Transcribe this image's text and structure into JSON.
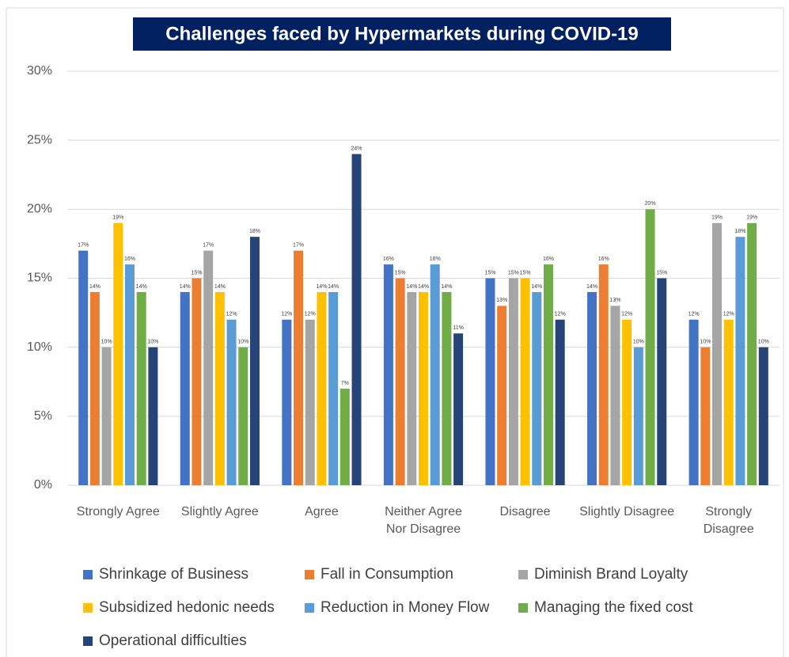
{
  "chart_data": {
    "type": "bar",
    "title": "Challenges faced by Hypermarkets during COVID-19",
    "categories": [
      "Strongly Agree",
      "Slightly Agree",
      "Agree",
      "Neither Agree Nor Disagree",
      "Disagree",
      "Slightly Disagree",
      "Strongly Disagree"
    ],
    "ylim": [
      0,
      30
    ],
    "yticks": [
      {
        "value": 0,
        "label": "0%"
      },
      {
        "value": 5,
        "label": "5%"
      },
      {
        "value": 10,
        "label": "10%"
      },
      {
        "value": 15,
        "label": "15%"
      },
      {
        "value": 20,
        "label": "20%"
      },
      {
        "value": 25,
        "label": "25%"
      },
      {
        "value": 30,
        "label": "30%"
      }
    ],
    "grid": true,
    "series": [
      {
        "name": "Shrinkage of Business",
        "color": "#4472c4",
        "values": [
          17,
          14,
          12,
          16,
          15,
          14,
          12
        ],
        "value_labels": [
          "17%",
          "14%",
          "12%",
          "16%",
          "15%",
          "14%",
          "12%"
        ]
      },
      {
        "name": "Fall in Consumption",
        "color": "#ed7d31",
        "values": [
          14,
          15,
          17,
          15,
          13,
          16,
          10
        ],
        "value_labels": [
          "14%",
          "15%",
          "17%",
          "15%",
          "13%",
          "16%",
          "10%"
        ]
      },
      {
        "name": "Diminish Brand Loyalty",
        "color": "#a5a5a5",
        "values": [
          10,
          17,
          12,
          14,
          15,
          13,
          19
        ],
        "value_labels": [
          "10%",
          "17%",
          "12%",
          "14%",
          "15%",
          "13%",
          "19%"
        ]
      },
      {
        "name": "Subsidized hedonic needs",
        "color": "#ffc000",
        "values": [
          19,
          14,
          14,
          14,
          15,
          12,
          12
        ],
        "value_labels": [
          "19%",
          "14%",
          "14%",
          "14%",
          "15%",
          "12%",
          "12%"
        ]
      },
      {
        "name": "Reduction in Money Flow",
        "color": "#5b9bd5",
        "values": [
          16,
          12,
          14,
          16,
          14,
          10,
          18
        ],
        "value_labels": [
          "16%",
          "12%",
          "14%",
          "16%",
          "14%",
          "10%",
          "18%"
        ]
      },
      {
        "name": "Managing the fixed cost",
        "color": "#70ad47",
        "values": [
          14,
          10,
          7,
          14,
          16,
          20,
          19
        ],
        "value_labels": [
          "14%",
          "10%",
          "7%",
          "14%",
          "16%",
          "20%",
          "19%"
        ]
      },
      {
        "name": "Operational difficulties",
        "color": "#264478",
        "values": [
          10,
          18,
          24,
          11,
          12,
          15,
          10
        ],
        "value_labels": [
          "10%",
          "18%",
          "24%",
          "11%",
          "12%",
          "15%",
          "10%"
        ]
      }
    ]
  }
}
